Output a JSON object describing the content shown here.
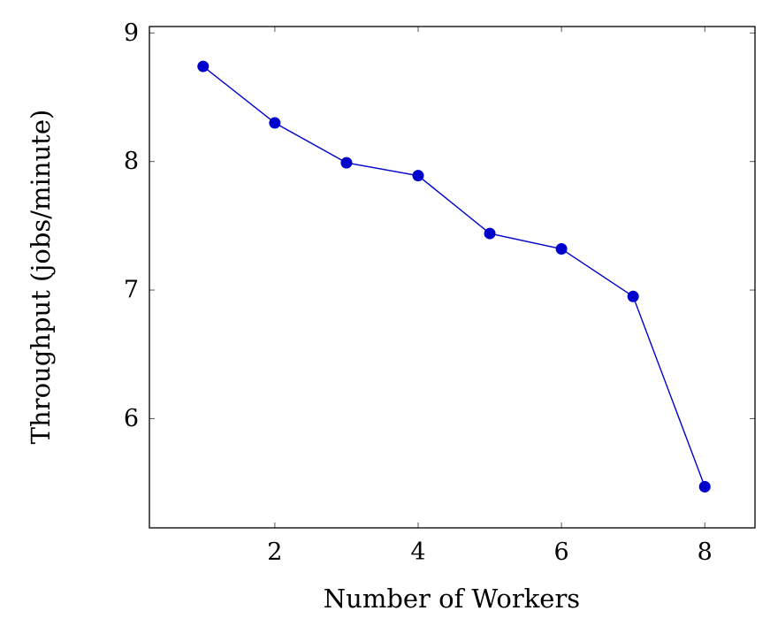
{
  "chart_data": {
    "type": "line",
    "title": "",
    "xlabel": "Number of Workers",
    "ylabel": "Throughput (jobs/minute)",
    "xlim": [
      0.25,
      8.7
    ],
    "ylim": [
      5.15,
      9.05
    ],
    "xticks": [
      2,
      4,
      6,
      8
    ],
    "yticks": [
      6,
      7,
      8,
      9
    ],
    "grid": false,
    "legend": "none",
    "series": [
      {
        "color": "#0000cc",
        "marker": "circle",
        "x": [
          1,
          2,
          3,
          4,
          5,
          6,
          7,
          8
        ],
        "y": [
          8.74,
          8.3,
          7.99,
          7.89,
          7.44,
          7.32,
          6.95,
          5.47
        ]
      }
    ]
  }
}
